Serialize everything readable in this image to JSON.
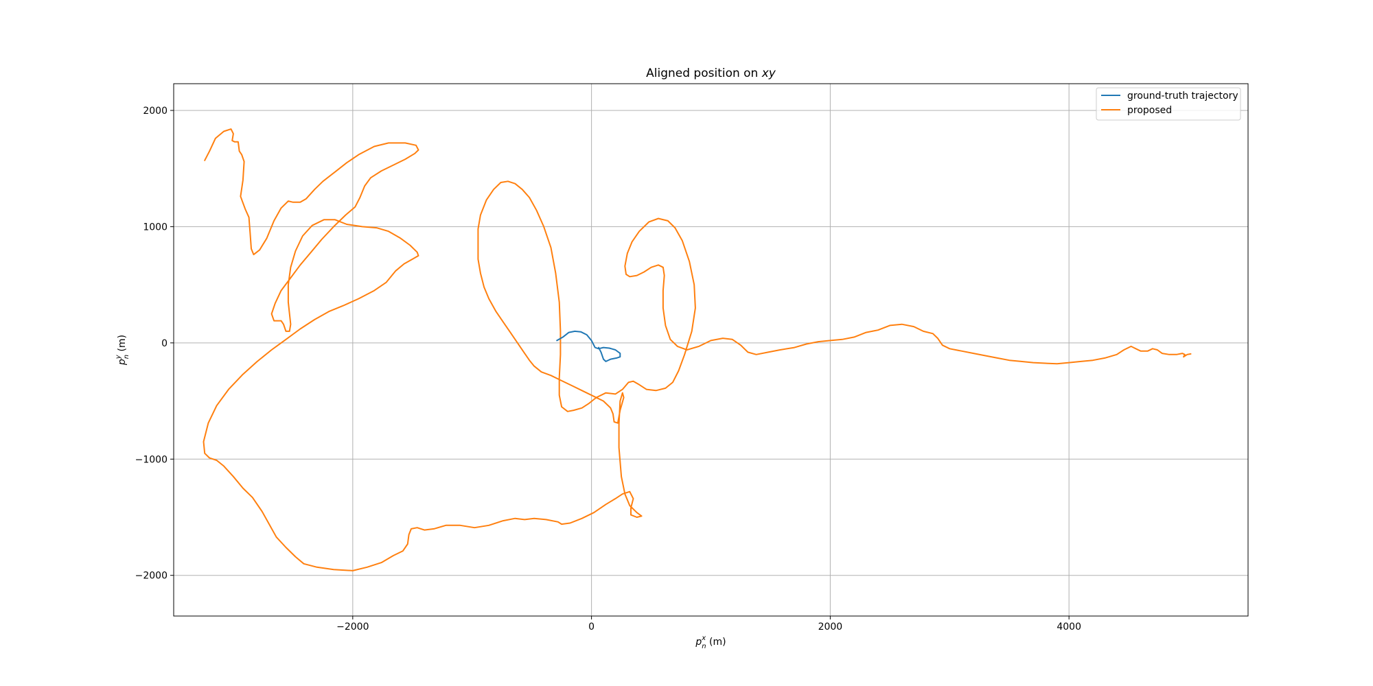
{
  "chart_data": {
    "type": "line",
    "title": "Aligned position on xy",
    "title_prefix": "Aligned position on ",
    "title_math": "xy",
    "xlabel": {
      "base": "p",
      "sup": "x",
      "sub": "n",
      "unit": " (m)"
    },
    "ylabel": {
      "base": "p",
      "sup": "y",
      "sub": "n",
      "unit": " (m)"
    },
    "xlim": [
      -3500,
      5500
    ],
    "ylim": [
      -2350,
      2230
    ],
    "xticks": [
      -2000,
      0,
      2000,
      4000
    ],
    "yticks": [
      -2000,
      -1000,
      0,
      1000,
      2000
    ],
    "xtick_labels": [
      "−2000",
      "0",
      "2000",
      "4000"
    ],
    "ytick_labels": [
      "−2000",
      "−1000",
      "0",
      "1000",
      "2000"
    ],
    "grid": true,
    "legend_position": "top-right",
    "series": [
      {
        "name": "ground-truth trajectory",
        "color": "#1f77b4",
        "points": [
          [
            -290,
            20
          ],
          [
            -240,
            50
          ],
          [
            -190,
            90
          ],
          [
            -140,
            100
          ],
          [
            -90,
            95
          ],
          [
            -40,
            70
          ],
          [
            0,
            20
          ],
          [
            30,
            -40
          ],
          [
            60,
            -50
          ],
          [
            100,
            -40
          ],
          [
            150,
            -45
          ],
          [
            200,
            -60
          ],
          [
            240,
            -90
          ],
          [
            240,
            -120
          ],
          [
            210,
            -130
          ],
          [
            160,
            -140
          ],
          [
            120,
            -160
          ],
          [
            100,
            -140
          ],
          [
            80,
            -80
          ],
          [
            60,
            -40
          ]
        ]
      },
      {
        "name": "proposed",
        "color": "#ff7f0e",
        "points": [
          [
            -3240,
            1570
          ],
          [
            -3200,
            1650
          ],
          [
            -3150,
            1760
          ],
          [
            -3080,
            1820
          ],
          [
            -3020,
            1840
          ],
          [
            -3000,
            1800
          ],
          [
            -3010,
            1740
          ],
          [
            -2990,
            1730
          ],
          [
            -2960,
            1730
          ],
          [
            -2950,
            1650
          ],
          [
            -2930,
            1620
          ],
          [
            -2910,
            1560
          ],
          [
            -2920,
            1400
          ],
          [
            -2940,
            1260
          ],
          [
            -2900,
            1150
          ],
          [
            -2870,
            1080
          ],
          [
            -2860,
            950
          ],
          [
            -2850,
            810
          ],
          [
            -2830,
            760
          ],
          [
            -2780,
            800
          ],
          [
            -2720,
            900
          ],
          [
            -2660,
            1050
          ],
          [
            -2600,
            1160
          ],
          [
            -2540,
            1220
          ],
          [
            -2500,
            1210
          ],
          [
            -2440,
            1210
          ],
          [
            -2390,
            1240
          ],
          [
            -2320,
            1320
          ],
          [
            -2250,
            1390
          ],
          [
            -2150,
            1470
          ],
          [
            -2050,
            1550
          ],
          [
            -1950,
            1620
          ],
          [
            -1820,
            1690
          ],
          [
            -1700,
            1720
          ],
          [
            -1560,
            1720
          ],
          [
            -1470,
            1700
          ],
          [
            -1450,
            1660
          ],
          [
            -1480,
            1630
          ],
          [
            -1560,
            1580
          ],
          [
            -1660,
            1530
          ],
          [
            -1760,
            1480
          ],
          [
            -1850,
            1420
          ],
          [
            -1900,
            1350
          ],
          [
            -1940,
            1250
          ],
          [
            -1980,
            1170
          ],
          [
            -2060,
            1100
          ],
          [
            -2160,
            1000
          ],
          [
            -2260,
            890
          ],
          [
            -2350,
            780
          ],
          [
            -2440,
            670
          ],
          [
            -2520,
            560
          ],
          [
            -2600,
            450
          ],
          [
            -2650,
            340
          ],
          [
            -2680,
            250
          ],
          [
            -2660,
            190
          ],
          [
            -2600,
            190
          ],
          [
            -2580,
            160
          ],
          [
            -2560,
            100
          ],
          [
            -2530,
            100
          ],
          [
            -2520,
            160
          ],
          [
            -2540,
            350
          ],
          [
            -2540,
            500
          ],
          [
            -2520,
            650
          ],
          [
            -2480,
            790
          ],
          [
            -2420,
            920
          ],
          [
            -2340,
            1010
          ],
          [
            -2240,
            1060
          ],
          [
            -2150,
            1060
          ],
          [
            -2050,
            1020
          ],
          [
            -1920,
            1000
          ],
          [
            -1800,
            990
          ],
          [
            -1700,
            960
          ],
          [
            -1600,
            900
          ],
          [
            -1520,
            840
          ],
          [
            -1460,
            780
          ],
          [
            -1450,
            750
          ],
          [
            -1500,
            720
          ],
          [
            -1570,
            680
          ],
          [
            -1640,
            620
          ],
          [
            -1720,
            520
          ],
          [
            -1820,
            450
          ],
          [
            -1950,
            380
          ],
          [
            -2080,
            320
          ],
          [
            -2200,
            270
          ],
          [
            -2320,
            200
          ],
          [
            -2440,
            120
          ],
          [
            -2560,
            30
          ],
          [
            -2680,
            -60
          ],
          [
            -2800,
            -160
          ],
          [
            -2920,
            -270
          ],
          [
            -3040,
            -400
          ],
          [
            -3140,
            -540
          ],
          [
            -3210,
            -690
          ],
          [
            -3250,
            -850
          ],
          [
            -3240,
            -950
          ],
          [
            -3200,
            -990
          ],
          [
            -3140,
            -1010
          ],
          [
            -3080,
            -1060
          ],
          [
            -3000,
            -1150
          ],
          [
            -2920,
            -1250
          ],
          [
            -2840,
            -1330
          ],
          [
            -2760,
            -1450
          ],
          [
            -2700,
            -1560
          ],
          [
            -2640,
            -1670
          ],
          [
            -2560,
            -1760
          ],
          [
            -2480,
            -1840
          ],
          [
            -2410,
            -1900
          ],
          [
            -2300,
            -1930
          ],
          [
            -2160,
            -1950
          ],
          [
            -2000,
            -1960
          ],
          [
            -1880,
            -1930
          ],
          [
            -1760,
            -1890
          ],
          [
            -1660,
            -1830
          ],
          [
            -1580,
            -1790
          ],
          [
            -1540,
            -1730
          ],
          [
            -1530,
            -1650
          ],
          [
            -1510,
            -1600
          ],
          [
            -1460,
            -1590
          ],
          [
            -1400,
            -1610
          ],
          [
            -1320,
            -1600
          ],
          [
            -1220,
            -1570
          ],
          [
            -1100,
            -1570
          ],
          [
            -980,
            -1590
          ],
          [
            -860,
            -1570
          ],
          [
            -740,
            -1530
          ],
          [
            -640,
            -1510
          ],
          [
            -560,
            -1520
          ],
          [
            -480,
            -1510
          ],
          [
            -380,
            -1520
          ],
          [
            -280,
            -1540
          ],
          [
            -250,
            -1560
          ],
          [
            -180,
            -1550
          ],
          [
            -80,
            -1510
          ],
          [
            20,
            -1460
          ],
          [
            120,
            -1390
          ],
          [
            200,
            -1340
          ],
          [
            260,
            -1300
          ],
          [
            320,
            -1280
          ],
          [
            350,
            -1340
          ],
          [
            330,
            -1420
          ],
          [
            330,
            -1480
          ],
          [
            380,
            -1500
          ],
          [
            420,
            -1490
          ],
          [
            380,
            -1460
          ],
          [
            320,
            -1400
          ],
          [
            280,
            -1300
          ],
          [
            250,
            -1150
          ],
          [
            230,
            -900
          ],
          [
            230,
            -700
          ],
          [
            240,
            -500
          ],
          [
            260,
            -430
          ],
          [
            270,
            -470
          ],
          [
            240,
            -580
          ],
          [
            220,
            -690
          ],
          [
            190,
            -680
          ],
          [
            180,
            -610
          ],
          [
            160,
            -560
          ],
          [
            100,
            -500
          ],
          [
            20,
            -460
          ],
          [
            -80,
            -410
          ],
          [
            -160,
            -370
          ],
          [
            -260,
            -320
          ],
          [
            -340,
            -280
          ],
          [
            -420,
            -250
          ],
          [
            -480,
            -200
          ],
          [
            -520,
            -150
          ],
          [
            -560,
            -90
          ],
          [
            -620,
            0
          ],
          [
            -680,
            90
          ],
          [
            -740,
            180
          ],
          [
            -800,
            270
          ],
          [
            -860,
            380
          ],
          [
            -900,
            480
          ],
          [
            -930,
            600
          ],
          [
            -950,
            720
          ],
          [
            -950,
            850
          ],
          [
            -950,
            980
          ],
          [
            -930,
            1100
          ],
          [
            -880,
            1230
          ],
          [
            -820,
            1320
          ],
          [
            -760,
            1380
          ],
          [
            -700,
            1390
          ],
          [
            -640,
            1370
          ],
          [
            -580,
            1320
          ],
          [
            -520,
            1250
          ],
          [
            -460,
            1140
          ],
          [
            -400,
            1000
          ],
          [
            -340,
            820
          ],
          [
            -300,
            600
          ],
          [
            -270,
            350
          ],
          [
            -260,
            100
          ],
          [
            -260,
            -100
          ],
          [
            -270,
            -300
          ],
          [
            -270,
            -450
          ],
          [
            -250,
            -550
          ],
          [
            -200,
            -590
          ],
          [
            -150,
            -580
          ],
          [
            -80,
            -560
          ],
          [
            -20,
            -520
          ],
          [
            40,
            -470
          ],
          [
            120,
            -430
          ],
          [
            200,
            -440
          ],
          [
            260,
            -400
          ],
          [
            310,
            -340
          ],
          [
            350,
            -330
          ],
          [
            400,
            -360
          ],
          [
            460,
            -400
          ],
          [
            540,
            -410
          ],
          [
            620,
            -390
          ],
          [
            680,
            -340
          ],
          [
            730,
            -240
          ],
          [
            780,
            -100
          ],
          [
            840,
            100
          ],
          [
            870,
            300
          ],
          [
            860,
            500
          ],
          [
            820,
            700
          ],
          [
            760,
            880
          ],
          [
            700,
            990
          ],
          [
            640,
            1050
          ],
          [
            560,
            1070
          ],
          [
            480,
            1040
          ],
          [
            400,
            960
          ],
          [
            340,
            870
          ],
          [
            300,
            770
          ],
          [
            280,
            660
          ],
          [
            290,
            590
          ],
          [
            320,
            570
          ],
          [
            380,
            580
          ],
          [
            440,
            610
          ],
          [
            500,
            650
          ],
          [
            560,
            670
          ],
          [
            600,
            650
          ],
          [
            610,
            580
          ],
          [
            600,
            450
          ],
          [
            600,
            300
          ],
          [
            620,
            150
          ],
          [
            660,
            30
          ],
          [
            720,
            -30
          ],
          [
            800,
            -60
          ],
          [
            900,
            -30
          ],
          [
            1000,
            20
          ],
          [
            1100,
            40
          ],
          [
            1180,
            30
          ],
          [
            1250,
            -20
          ],
          [
            1310,
            -80
          ],
          [
            1380,
            -100
          ],
          [
            1480,
            -80
          ],
          [
            1580,
            -60
          ],
          [
            1700,
            -40
          ],
          [
            1800,
            -10
          ],
          [
            1900,
            10
          ],
          [
            2000,
            20
          ],
          [
            2100,
            30
          ],
          [
            2200,
            50
          ],
          [
            2300,
            90
          ],
          [
            2400,
            110
          ],
          [
            2500,
            150
          ],
          [
            2600,
            160
          ],
          [
            2700,
            140
          ],
          [
            2780,
            100
          ],
          [
            2860,
            80
          ],
          [
            2900,
            40
          ],
          [
            2940,
            -20
          ],
          [
            3000,
            -50
          ],
          [
            3100,
            -70
          ],
          [
            3200,
            -90
          ],
          [
            3300,
            -110
          ],
          [
            3400,
            -130
          ],
          [
            3500,
            -150
          ],
          [
            3600,
            -160
          ],
          [
            3700,
            -170
          ],
          [
            3800,
            -175
          ],
          [
            3900,
            -180
          ],
          [
            4000,
            -170
          ],
          [
            4100,
            -160
          ],
          [
            4200,
            -150
          ],
          [
            4300,
            -130
          ],
          [
            4400,
            -100
          ],
          [
            4460,
            -60
          ],
          [
            4520,
            -30
          ],
          [
            4560,
            -50
          ],
          [
            4600,
            -70
          ],
          [
            4660,
            -70
          ],
          [
            4700,
            -50
          ],
          [
            4740,
            -60
          ],
          [
            4780,
            -90
          ],
          [
            4840,
            -100
          ],
          [
            4900,
            -100
          ],
          [
            4950,
            -90
          ],
          [
            4970,
            -100
          ],
          [
            4960,
            -120
          ],
          [
            4990,
            -100
          ],
          [
            5020,
            -95
          ]
        ]
      }
    ]
  }
}
